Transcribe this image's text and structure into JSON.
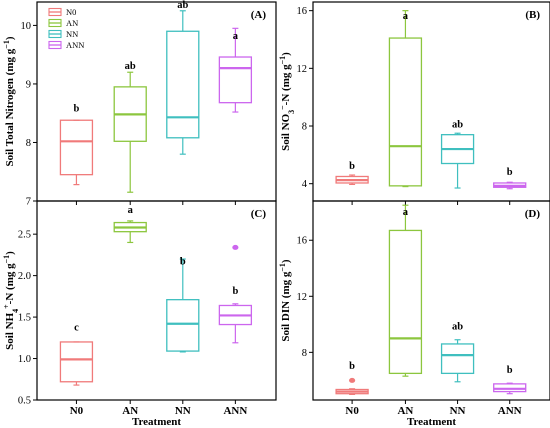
{
  "colors": {
    "N0": "#f07a7a",
    "AN": "#8cc63e",
    "NN": "#3fbfbf",
    "ANN": "#cc66ee"
  },
  "chart_data": [
    {
      "id": "A",
      "type": "box",
      "panel_tag": "(A)",
      "ylabel_main": "Soil Total Nitrogen",
      "ylabel_unit": "(mg g",
      "ylabel_sup": "−1",
      "ylabel_close": ")",
      "ylim": [
        7,
        10.4
      ],
      "yticks": [
        7,
        8,
        9,
        10
      ],
      "ytick_labels": [
        "7",
        "8",
        "9",
        "10"
      ],
      "categories": [
        "N0",
        "AN",
        "NN",
        "ANN"
      ],
      "show_xlabels": false,
      "legend": {
        "position": "top-left",
        "entries": [
          "N0",
          "AN",
          "NN",
          "ANN"
        ]
      },
      "boxes": [
        {
          "group": "N0",
          "whisker_low": 7.28,
          "q1": 7.45,
          "median": 8.02,
          "q3": 8.38,
          "whisker_high": 8.38,
          "sig": "b",
          "sig_y": 8.48
        },
        {
          "group": "AN",
          "whisker_low": 7.15,
          "q1": 8.02,
          "median": 8.48,
          "q3": 8.95,
          "whisker_high": 9.2,
          "sig": "ab",
          "sig_y": 9.2
        },
        {
          "group": "NN",
          "whisker_low": 7.8,
          "q1": 8.08,
          "median": 8.43,
          "q3": 9.9,
          "whisker_high": 10.25,
          "sig": "ab",
          "sig_y": 10.25
        },
        {
          "group": "ANN",
          "whisker_low": 8.52,
          "q1": 8.68,
          "median": 9.27,
          "q3": 9.46,
          "whisker_high": 9.95,
          "sig": "a",
          "sig_y": 9.72
        }
      ]
    },
    {
      "id": "B",
      "type": "box",
      "panel_tag": "(B)",
      "ylabel_main": "Soil NO",
      "ylabel_sub": "3",
      "ylabel_sup": "−",
      "ylabel_rest": "-N (mg g",
      "ylabel_sup2": "−1",
      "ylabel_close": ")",
      "ylim": [
        2.8,
        16.6
      ],
      "yticks": [
        4,
        8,
        12,
        16
      ],
      "ytick_labels": [
        "4",
        "8",
        "12",
        "16"
      ],
      "categories": [
        "N0",
        "AN",
        "NN",
        "ANN"
      ],
      "show_xlabels": false,
      "boxes": [
        {
          "group": "N0",
          "whisker_low": 3.95,
          "q1": 4.05,
          "median": 4.25,
          "q3": 4.5,
          "whisker_high": 4.6,
          "sig": "b",
          "sig_y": 4.8
        },
        {
          "group": "AN",
          "whisker_low": 3.8,
          "q1": 3.85,
          "median": 6.6,
          "q3": 14.1,
          "whisker_high": 16.0,
          "sig": "a",
          "sig_y": 15.2
        },
        {
          "group": "NN",
          "whisker_low": 3.7,
          "q1": 5.4,
          "median": 6.4,
          "q3": 7.4,
          "whisker_high": 7.5,
          "sig": "ab",
          "sig_y": 7.7
        },
        {
          "group": "ANN",
          "whisker_low": 3.65,
          "q1": 3.75,
          "median": 3.85,
          "q3": 4.05,
          "whisker_high": 4.1,
          "sig": "b",
          "sig_y": 4.4
        }
      ]
    },
    {
      "id": "C",
      "type": "box",
      "panel_tag": "(C)",
      "ylabel_main": "Soil NH",
      "ylabel_sub": "4",
      "ylabel_sup": "+",
      "ylabel_rest": "-N (mg g",
      "ylabel_sup2": "−1",
      "ylabel_close": ")",
      "ylim": [
        0.5,
        2.9
      ],
      "yticks": [
        0.5,
        1.0,
        1.5,
        2.0,
        2.5
      ],
      "ytick_labels": [
        "0.5",
        "1.0",
        "1.5",
        "2.0",
        "2.5"
      ],
      "categories": [
        "N0",
        "AN",
        "NN",
        "ANN"
      ],
      "show_xlabels": true,
      "xlabel": "Treatment",
      "boxes": [
        {
          "group": "N0",
          "whisker_low": 0.68,
          "q1": 0.72,
          "median": 0.99,
          "q3": 1.2,
          "whisker_high": 1.2,
          "sig": "c",
          "sig_y": 1.3
        },
        {
          "group": "AN",
          "whisker_low": 2.4,
          "q1": 2.53,
          "median": 2.58,
          "q3": 2.64,
          "whisker_high": 2.66,
          "sig": "a",
          "sig_y": 2.72
        },
        {
          "group": "NN",
          "whisker_low": 1.08,
          "q1": 1.09,
          "median": 1.42,
          "q3": 1.71,
          "whisker_high": 2.2,
          "sig": "b",
          "sig_y": 2.1
        },
        {
          "group": "ANN",
          "whisker_low": 1.19,
          "q1": 1.41,
          "median": 1.52,
          "q3": 1.64,
          "whisker_high": 1.66,
          "outliers": [
            2.34
          ],
          "sig": "b",
          "sig_y": 1.74
        }
      ]
    },
    {
      "id": "D",
      "type": "box",
      "panel_tag": "(D)",
      "ylabel_main": "Soil DIN",
      "ylabel_unit": "(mg g",
      "ylabel_sup": "−1",
      "ylabel_close": ")",
      "ylim": [
        4.6,
        18.8
      ],
      "yticks": [
        8,
        12,
        16
      ],
      "ytick_labels": [
        "8",
        "12",
        "16"
      ],
      "categories": [
        "N0",
        "AN",
        "NN",
        "ANN"
      ],
      "show_xlabels": true,
      "xlabel": "Treatment",
      "boxes": [
        {
          "group": "N0",
          "whisker_low": 5.0,
          "q1": 5.05,
          "median": 5.2,
          "q3": 5.35,
          "whisker_high": 5.4,
          "outliers": [
            6.0
          ],
          "sig": "b",
          "sig_y": 6.6
        },
        {
          "group": "AN",
          "whisker_low": 6.3,
          "q1": 6.5,
          "median": 9.0,
          "q3": 16.7,
          "whisker_high": 18.5,
          "sig": "a",
          "sig_y": 17.6
        },
        {
          "group": "NN",
          "whisker_low": 5.9,
          "q1": 6.5,
          "median": 7.8,
          "q3": 8.6,
          "whisker_high": 8.9,
          "sig": "ab",
          "sig_y": 9.4
        },
        {
          "group": "ANN",
          "whisker_low": 5.05,
          "q1": 5.2,
          "median": 5.4,
          "q3": 5.75,
          "whisker_high": 5.8,
          "sig": "b",
          "sig_y": 6.3
        }
      ]
    }
  ]
}
